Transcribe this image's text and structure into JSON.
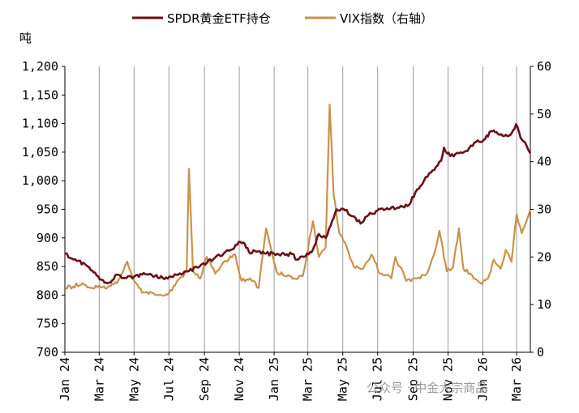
{
  "chart_data": {
    "type": "line",
    "y_left_unit": "吨",
    "y_left_ticks": [
      "700",
      "750",
      "800",
      "850",
      "900",
      "950",
      "1,000",
      "1,050",
      "1,100",
      "1,150",
      "1,200"
    ],
    "ylim_left": [
      700,
      1200
    ],
    "y_right_ticks": [
      "0",
      "10",
      "20",
      "30",
      "40",
      "50",
      "60"
    ],
    "ylim_right": [
      0,
      60
    ],
    "x_ticks": [
      "Jan 24",
      "Mar 24",
      "May 24",
      "Jul 24",
      "Sep 24",
      "Nov 24",
      "Jan 25",
      "Mar 25",
      "May 25",
      "Jul 25",
      "Sep 25",
      "Nov 25",
      "Jan 26",
      "Mar 26"
    ],
    "xlim": [
      "2024-01-01",
      "2026-03-25"
    ],
    "grid": "vertical lines at x ticks",
    "legend_placement": "top-center",
    "series": [
      {
        "name": "SPDR黄金ETF持仓",
        "axis": "left",
        "color": "#6b0f16",
        "points": [
          [
            "2024-01-02",
            873
          ],
          [
            "2024-01-10",
            865
          ],
          [
            "2024-01-25",
            860
          ],
          [
            "2024-02-10",
            850
          ],
          [
            "2024-02-20",
            840
          ],
          [
            "2024-03-05",
            827
          ],
          [
            "2024-03-18",
            822
          ],
          [
            "2024-04-01",
            836
          ],
          [
            "2024-04-15",
            830
          ],
          [
            "2024-05-01",
            832
          ],
          [
            "2024-05-15",
            836
          ],
          [
            "2024-06-01",
            835
          ],
          [
            "2024-06-20",
            830
          ],
          [
            "2024-07-05",
            832
          ],
          [
            "2024-07-20",
            838
          ],
          [
            "2024-08-05",
            842
          ],
          [
            "2024-08-20",
            848
          ],
          [
            "2024-09-05",
            856
          ],
          [
            "2024-09-20",
            866
          ],
          [
            "2024-10-05",
            873
          ],
          [
            "2024-10-20",
            880
          ],
          [
            "2024-10-31",
            893
          ],
          [
            "2024-11-08",
            892
          ],
          [
            "2024-11-18",
            875
          ],
          [
            "2024-12-01",
            876
          ],
          [
            "2024-12-15",
            873
          ],
          [
            "2025-01-01",
            872
          ],
          [
            "2025-01-20",
            870
          ],
          [
            "2025-02-01",
            872
          ],
          [
            "2025-02-10",
            862
          ],
          [
            "2025-02-25",
            868
          ],
          [
            "2025-03-10",
            880
          ],
          [
            "2025-03-20",
            907
          ],
          [
            "2025-04-01",
            900
          ],
          [
            "2025-04-10",
            922
          ],
          [
            "2025-04-20",
            950
          ],
          [
            "2025-05-05",
            948
          ],
          [
            "2025-05-20",
            938
          ],
          [
            "2025-06-01",
            925
          ],
          [
            "2025-06-15",
            940
          ],
          [
            "2025-07-01",
            948
          ],
          [
            "2025-07-20",
            950
          ],
          [
            "2025-08-05",
            953
          ],
          [
            "2025-08-25",
            958
          ],
          [
            "2025-09-05",
            980
          ],
          [
            "2025-09-20",
            1000
          ],
          [
            "2025-10-05",
            1018
          ],
          [
            "2025-10-20",
            1035
          ],
          [
            "2025-10-25",
            1058
          ],
          [
            "2025-11-05",
            1043
          ],
          [
            "2025-11-20",
            1048
          ],
          [
            "2025-12-05",
            1052
          ],
          [
            "2025-12-20",
            1068
          ],
          [
            "2026-01-05",
            1073
          ],
          [
            "2026-01-15",
            1087
          ],
          [
            "2026-01-25",
            1085
          ],
          [
            "2026-02-05",
            1078
          ],
          [
            "2026-02-18",
            1080
          ],
          [
            "2026-02-28",
            1099
          ],
          [
            "2026-03-08",
            1075
          ],
          [
            "2026-03-18",
            1062
          ],
          [
            "2026-03-25",
            1048
          ]
        ]
      },
      {
        "name": "VIX指数（右轴）",
        "axis": "right",
        "color": "#c8924a",
        "points": [
          [
            "2024-01-02",
            13.5
          ],
          [
            "2024-01-15",
            13.8
          ],
          [
            "2024-02-01",
            14.5
          ],
          [
            "2024-02-15",
            13.5
          ],
          [
            "2024-03-01",
            14.0
          ],
          [
            "2024-03-15",
            13.5
          ],
          [
            "2024-04-01",
            14.5
          ],
          [
            "2024-04-12",
            17.0
          ],
          [
            "2024-04-19",
            19.0
          ],
          [
            "2024-05-01",
            15.0
          ],
          [
            "2024-05-15",
            12.5
          ],
          [
            "2024-06-01",
            12.5
          ],
          [
            "2024-06-15",
            12.0
          ],
          [
            "2024-07-01",
            12.5
          ],
          [
            "2024-07-20",
            15.5
          ],
          [
            "2024-08-01",
            17.0
          ],
          [
            "2024-08-05",
            38.5
          ],
          [
            "2024-08-12",
            17.0
          ],
          [
            "2024-08-25",
            15.5
          ],
          [
            "2024-09-05",
            20.0
          ],
          [
            "2024-09-20",
            16.5
          ],
          [
            "2024-10-05",
            19.0
          ],
          [
            "2024-10-25",
            20.5
          ],
          [
            "2024-11-05",
            15.0
          ],
          [
            "2024-11-20",
            15.5
          ],
          [
            "2024-12-05",
            13.5
          ],
          [
            "2024-12-18",
            26.0
          ],
          [
            "2025-01-05",
            17.0
          ],
          [
            "2025-01-20",
            16.0
          ],
          [
            "2025-02-05",
            15.5
          ],
          [
            "2025-02-20",
            16.0
          ],
          [
            "2025-03-10",
            27.5
          ],
          [
            "2025-03-20",
            20.0
          ],
          [
            "2025-04-01",
            22.0
          ],
          [
            "2025-04-08",
            52.0
          ],
          [
            "2025-04-15",
            33.0
          ],
          [
            "2025-04-25",
            25.0
          ],
          [
            "2025-05-05",
            23.0
          ],
          [
            "2025-05-20",
            18.0
          ],
          [
            "2025-06-05",
            17.5
          ],
          [
            "2025-06-20",
            20.5
          ],
          [
            "2025-07-05",
            16.5
          ],
          [
            "2025-07-25",
            15.5
          ],
          [
            "2025-08-01",
            20.0
          ],
          [
            "2025-08-20",
            15.0
          ],
          [
            "2025-09-05",
            15.5
          ],
          [
            "2025-09-25",
            16.5
          ],
          [
            "2025-10-10",
            21.5
          ],
          [
            "2025-10-17",
            25.5
          ],
          [
            "2025-10-30",
            17.0
          ],
          [
            "2025-11-10",
            18.0
          ],
          [
            "2025-11-20",
            26.0
          ],
          [
            "2025-11-28",
            17.5
          ],
          [
            "2025-12-10",
            16.5
          ],
          [
            "2025-12-28",
            14.5
          ],
          [
            "2026-01-10",
            15.5
          ],
          [
            "2026-01-20",
            19.5
          ],
          [
            "2026-02-01",
            17.5
          ],
          [
            "2026-02-10",
            21.5
          ],
          [
            "2026-02-20",
            19.0
          ],
          [
            "2026-03-01",
            29.0
          ],
          [
            "2026-03-10",
            25.0
          ],
          [
            "2026-03-18",
            27.5
          ],
          [
            "2026-03-25",
            30.0
          ]
        ]
      }
    ]
  },
  "watermark": "公众号 · 中金大宗商品"
}
